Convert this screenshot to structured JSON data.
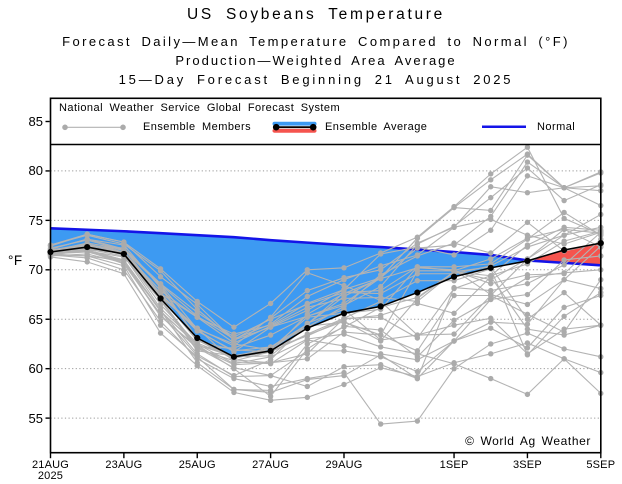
{
  "header": {
    "title": "US Soybeans Temperature",
    "subtitle1": "Forecast Daily—Mean Temperature Compared to Normal (°F)",
    "subtitle2": "Production—Weighted Area Average",
    "subtitle3": "15—Day Forecast Beginning 21 August 2025"
  },
  "legend": {
    "system_label": "National Weather Service Global Forecast System",
    "members_label": "Ensemble Members",
    "average_label": "Ensemble Average",
    "normal_label": "Normal"
  },
  "axes": {
    "y_axis_label": "°F",
    "y_ticks": [
      55,
      60,
      65,
      70,
      75,
      80,
      85
    ],
    "x_tick_labels": [
      "21AUG",
      "23AUG",
      "25AUG",
      "27AUG",
      "29AUG",
      "1SEP",
      "3SEP",
      "5SEP"
    ],
    "x_tick_days": [
      0,
      2,
      4,
      6,
      8,
      11,
      13,
      15
    ],
    "x_start_year": "2025"
  },
  "copyright": {
    "text": "© World Ag Weather"
  },
  "colors": {
    "below_normal_fill": "#3d9af2",
    "above_normal_fill": "#f5544e",
    "normal_line": "#1414e8",
    "ensemble_member": "#b3b3b3",
    "ensemble_member_marker": "#ababab",
    "ensemble_average": "#000000",
    "grid": "#999999",
    "frame": "#000000"
  },
  "chart_data": {
    "type": "line",
    "title": "US Soybeans Temperature",
    "xlabel": "",
    "ylabel": "°F",
    "ylim": [
      52.4,
      87.3
    ],
    "grid": "horizontal-dotted",
    "legend_position": "top-strip",
    "x_days": [
      "21AUG",
      "22AUG",
      "23AUG",
      "24AUG",
      "25AUG",
      "26AUG",
      "27AUG",
      "28AUG",
      "29AUG",
      "30AUG",
      "31AUG",
      "1SEP",
      "2SEP",
      "3SEP",
      "4SEP",
      "5SEP"
    ],
    "series": [
      {
        "name": "Normal",
        "values": [
          74.2,
          74.05,
          73.9,
          73.7,
          73.5,
          73.3,
          73.0,
          72.75,
          72.5,
          72.3,
          72.05,
          71.8,
          71.5,
          70.95,
          70.7,
          70.45
        ]
      },
      {
        "name": "Ensemble Average",
        "values": [
          71.8,
          72.3,
          71.6,
          67.1,
          63.1,
          61.2,
          61.8,
          64.1,
          65.6,
          66.3,
          67.7,
          69.3,
          70.2,
          70.9,
          72.0,
          72.7
        ]
      }
    ],
    "ensemble_members": [
      [
        72.5,
        73.6,
        72.8,
        70.1,
        66.8,
        64.2,
        66.6,
        70.0,
        70.2,
        71.7,
        73.3,
        76.4,
        79.7,
        82.4,
        75.2,
        73.6
      ],
      [
        72.2,
        73.0,
        72.0,
        68.5,
        65.3,
        63.0,
        64.5,
        67.3,
        69.0,
        70.4,
        71.5,
        74.3,
        78.4,
        77.8,
        78.3,
        79.9
      ],
      [
        71.5,
        71.2,
        70.0,
        64.8,
        61.0,
        59.0,
        58.2,
        59.0,
        59.6,
        54.4,
        54.7,
        60.0,
        62.5,
        63.6,
        62.0,
        61.2
      ],
      [
        71.3,
        70.8,
        69.6,
        63.6,
        60.3,
        57.6,
        56.8,
        57.1,
        58.4,
        60.1,
        59.2,
        60.6,
        61.5,
        62.6,
        61.0,
        59.6
      ],
      [
        71.9,
        72.4,
        71.5,
        66.5,
        62.5,
        60.5,
        61.2,
        63.0,
        63.5,
        62.2,
        61.5,
        60.5,
        59.0,
        57.4,
        61.0,
        57.5
      ],
      [
        71.6,
        72.1,
        71.4,
        66.1,
        62.6,
        61.1,
        61.7,
        63.4,
        64.8,
        62.8,
        67.1,
        69.8,
        69.4,
        70.6,
        72.9,
        73.9
      ],
      [
        71.6,
        71.9,
        71.3,
        66.9,
        61.8,
        61.3,
        62.0,
        65.2,
        65.6,
        66.0,
        70.3,
        70.3,
        70.6,
        73.1,
        75.8,
        73.5
      ],
      [
        71.5,
        71.4,
        70.4,
        64.4,
        61.2,
        57.9,
        57.8,
        62.5,
        64.2,
        66.2,
        67.2,
        69.8,
        69.0,
        71.1,
        74.1,
        72.3
      ],
      [
        72.5,
        73.5,
        72.6,
        69.9,
        66.0,
        62.9,
        64.2,
        65.9,
        68.0,
        71.6,
        72.3,
        71.5,
        74.0,
        79.5,
        78.3,
        78.0
      ],
      [
        72.4,
        73.6,
        72.8,
        69.3,
        66.5,
        62.9,
        65.1,
        67.9,
        69.2,
        70.0,
        72.7,
        74.3,
        75.1,
        73.5,
        72.6,
        73.8
      ],
      [
        72.1,
        73.1,
        72.1,
        67.5,
        64.1,
        62.3,
        65.2,
        69.7,
        68.4,
        66.9,
        68.9,
        68.9,
        70.1,
        61.4,
        65.3,
        67.7
      ],
      [
        71.8,
        72.3,
        71.8,
        67.5,
        63.8,
        61.8,
        62.2,
        64.2,
        66.3,
        69.5,
        71.4,
        72.7,
        71.7,
        74.8,
        71.9,
        72.7
      ],
      [
        71.6,
        71.9,
        70.6,
        65.5,
        61.3,
        59.3,
        60.9,
        64.6,
        66.0,
        62.9,
        63.4,
        63.5,
        67.4,
        71.1,
        73.5,
        75.6
      ],
      [
        71.5,
        72.0,
        70.7,
        65.9,
        61.5,
        59.2,
        59.3,
        58.2,
        60.2,
        60.4,
        59.0,
        62.8,
        64.7,
        64.5,
        69.0,
        68.1
      ],
      [
        71.8,
        72.2,
        71.7,
        67.3,
        62.8,
        61.9,
        61.7,
        65.5,
        67.6,
        69.1,
        70.2,
        70.0,
        67.5,
        66.5,
        69.0,
        72.4
      ],
      [
        71.4,
        71.6,
        70.7,
        65.3,
        62.2,
        60.4,
        60.6,
        61.5,
        65.1,
        65.2,
        63.1,
        68.1,
        69.4,
        72.5,
        74.3,
        74.0
      ],
      [
        71.8,
        72.5,
        72.0,
        68.4,
        63.0,
        60.9,
        60.6,
        61.0,
        63.7,
        63.4,
        61.8,
        67.4,
        67.4,
        65.5,
        63.7,
        69.0
      ],
      [
        71.7,
        72.0,
        71.7,
        67.0,
        62.2,
        62.1,
        63.4,
        65.3,
        66.6,
        69.2,
        72.2,
        72.5,
        75.4,
        80.9,
        78.3,
        79.8
      ],
      [
        71.8,
        72.4,
        72.2,
        68.5,
        64.0,
        62.5,
        61.9,
        64.5,
        67.7,
        67.6,
        69.6,
        69.6,
        70.4,
        72.3,
        73.5,
        74.3
      ],
      [
        72.0,
        72.6,
        71.8,
        67.6,
        65.2,
        62.6,
        64.3,
        66.2,
        67.1,
        67.2,
        66.8,
        69.8,
        70.3,
        65.0,
        67.7,
        64.4
      ],
      [
        71.7,
        71.9,
        71.0,
        65.9,
        60.6,
        57.9,
        57.6,
        58.9,
        59.3,
        61.4,
        59.0,
        68.2,
        67.9,
        68.6,
        70.5,
        73.8
      ],
      [
        71.9,
        72.7,
        72.1,
        68.6,
        65.7,
        63.2,
        65.0,
        66.5,
        67.7,
        67.9,
        70.3,
        69.9,
        71.1,
        73.2,
        74.1,
        73.7
      ],
      [
        71.8,
        72.5,
        71.8,
        67.3,
        62.9,
        61.0,
        62.0,
        63.3,
        65.0,
        65.4,
        66.6,
        65.6,
        69.3,
        64.0,
        63.4,
        64.4
      ],
      [
        72.1,
        73.1,
        72.5,
        68.2,
        63.0,
        61.1,
        62.2,
        64.5,
        67.3,
        69.2,
        73.2,
        76.3,
        76.0,
        81.6,
        78.3,
        76.5
      ],
      [
        71.6,
        71.8,
        70.9,
        65.8,
        62.4,
        60.0,
        57.2,
        62.0,
        64.3,
        63.9,
        61.2,
        64.9,
        67.0,
        67.5,
        71.0,
        71.4
      ],
      [
        72.0,
        72.4,
        71.6,
        67.6,
        63.9,
        61.7,
        64.2,
        65.3,
        66.4,
        68.3,
        72.6,
        74.4,
        77.3,
        80.3,
        77.0,
        78.6
      ],
      [
        71.8,
        72.3,
        71.7,
        67.9,
        65.2,
        63.5,
        64.4,
        66.6,
        68.0,
        69.2,
        73.2,
        76.3,
        79.1,
        81.7,
        78.3,
        78.5
      ],
      [
        71.8,
        72.1,
        71.7,
        66.9,
        62.0,
        60.8,
        61.7,
        63.5,
        65.1,
        66.8,
        63.4,
        64.4,
        65.1,
        61.5,
        64.0,
        64.4
      ],
      [
        71.7,
        72.0,
        71.0,
        65.8,
        62.4,
        61.2,
        61.3,
        64.3,
        64.7,
        63.4,
        69.9,
        69.9,
        68.6,
        69.5,
        69.6,
        73.1
      ],
      [
        71.9,
        72.6,
        71.7,
        67.3,
        64.1,
        60.7,
        60.5,
        62.9,
        62.3,
        61.5,
        60.9,
        62.8,
        64.1,
        62.1,
        66.2,
        67.4
      ],
      [
        71.6,
        71.4,
        70.9,
        65.3,
        62.1,
        60.1,
        59.3,
        61.8,
        61.8,
        61.2,
        59.7,
        62.8,
        67.0,
        69.2,
        69.7,
        70.0
      ]
    ]
  }
}
